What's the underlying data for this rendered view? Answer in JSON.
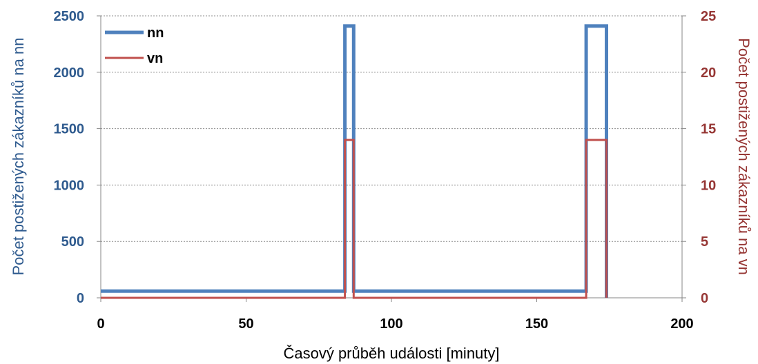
{
  "chart_data": {
    "type": "line",
    "xlabel": "Časový průběh události [minuty]",
    "ylabel_left": "Počet postižených zákazníků na nn",
    "ylabel_right": "Počet postižených zákazníků na vn",
    "xlim": [
      0,
      200
    ],
    "ylim_left": [
      0,
      2500
    ],
    "ylim_right": [
      0,
      25
    ],
    "x_ticks": [
      "0",
      "50",
      "100",
      "150",
      "200"
    ],
    "y_ticks_left": [
      "0",
      "500",
      "1000",
      "1500",
      "2000",
      "2500"
    ],
    "y_ticks_right": [
      "0",
      "5",
      "10",
      "15",
      "20",
      "25"
    ],
    "grid": true,
    "legend_position": "top-left",
    "series": [
      {
        "name": "nn",
        "axis": "left",
        "color": "#4f81bd",
        "x": [
          0,
          84,
          84,
          87,
          87,
          167,
          167,
          174,
          174
        ],
        "y": [
          60,
          60,
          2410,
          2410,
          60,
          60,
          2410,
          2410,
          0
        ]
      },
      {
        "name": "vn",
        "axis": "right",
        "color": "#c0504d",
        "x": [
          0,
          84,
          84,
          87,
          87,
          167,
          167,
          174,
          174
        ],
        "y": [
          0,
          0,
          14,
          14,
          0,
          0,
          14,
          14,
          0
        ]
      }
    ]
  }
}
